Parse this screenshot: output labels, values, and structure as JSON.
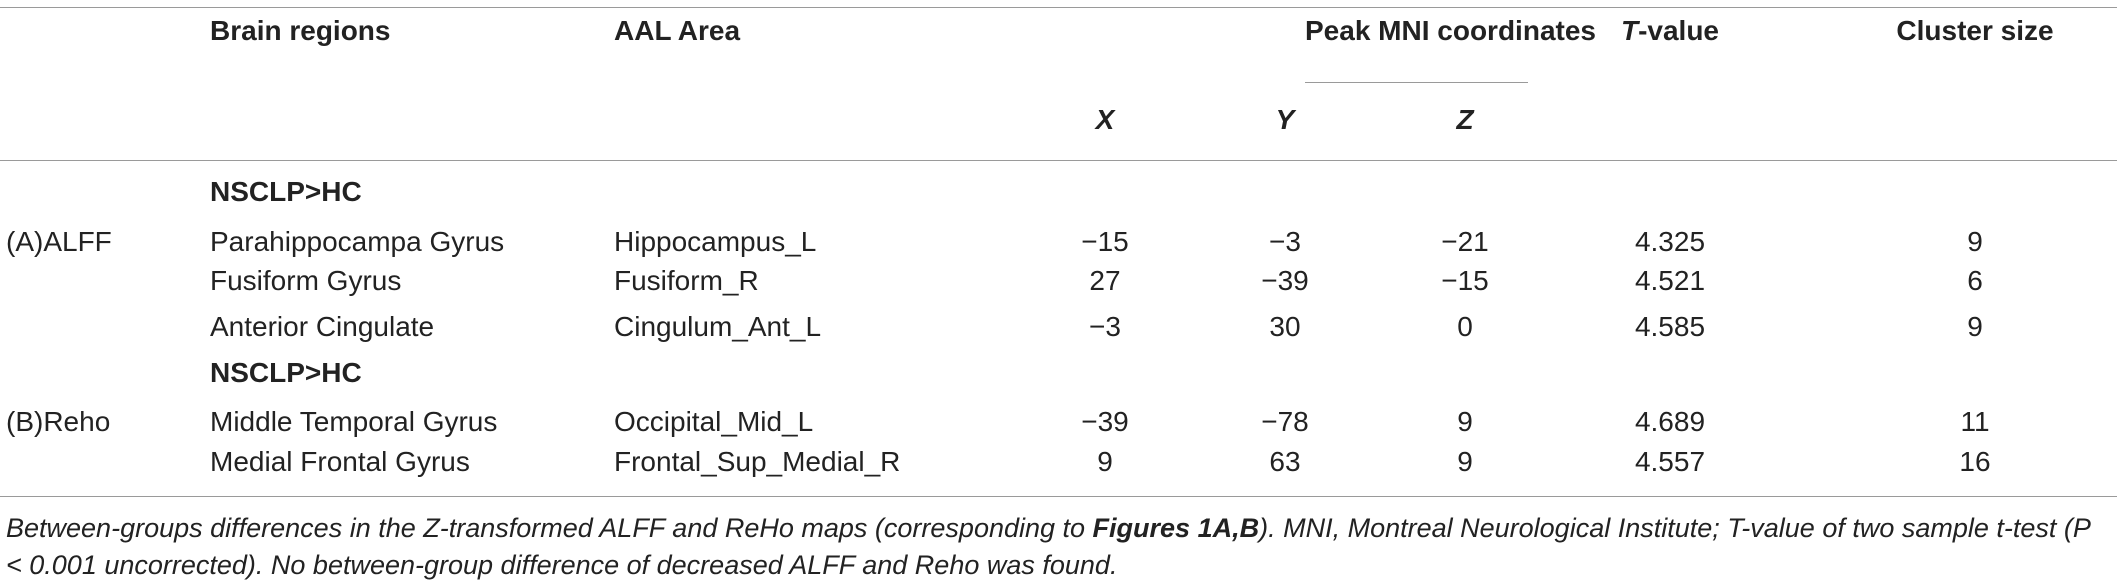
{
  "header": {
    "brain_regions": "Brain regions",
    "aal_area": "AAL Area",
    "peak_mni": "Peak MNI coordinates",
    "t_prefix": "T",
    "t_suffix": "-value",
    "cluster_size": "Cluster size",
    "x": "X",
    "y": "Y",
    "z": "Z"
  },
  "sections": [
    {
      "subhead": "NSCLP>HC",
      "group": "(A)ALFF",
      "rows": [
        {
          "region": "Parahippocampa Gyrus",
          "aal": "Hippocampus_L",
          "x": "−15",
          "y": "−3",
          "z": "−21",
          "t": "4.325",
          "cluster": "9"
        },
        {
          "region": "Fusiform Gyrus",
          "aal": "Fusiform_R",
          "x": "27",
          "y": "−39",
          "z": "−15",
          "t": "4.521",
          "cluster": "6"
        },
        {
          "region": "Anterior Cingulate",
          "aal": "Cingulum_Ant_L",
          "x": "−3",
          "y": "30",
          "z": "0",
          "t": "4.585",
          "cluster": "9"
        }
      ]
    },
    {
      "subhead": "NSCLP>HC",
      "group": "(B)Reho",
      "rows": [
        {
          "region": "Middle Temporal Gyrus",
          "aal": "Occipital_Mid_L",
          "x": "−39",
          "y": "−78",
          "z": "9",
          "t": "4.689",
          "cluster": "11"
        },
        {
          "region": "Medial Frontal Gyrus",
          "aal": "Frontal_Sup_Medial_R",
          "x": "9",
          "y": "63",
          "z": "9",
          "t": "4.557",
          "cluster": "16"
        }
      ]
    }
  ],
  "footnote": {
    "part1": "Between-groups differences in the Z-transformed ALFF and ReHo maps (corresponding to ",
    "figures": "Figures 1A,B",
    "part2": "). MNI, Montreal Neurological Institute; T-value of two sample t-test (P < 0.001 uncorrected). No between-group difference of decreased ALFF and Reho was found."
  }
}
